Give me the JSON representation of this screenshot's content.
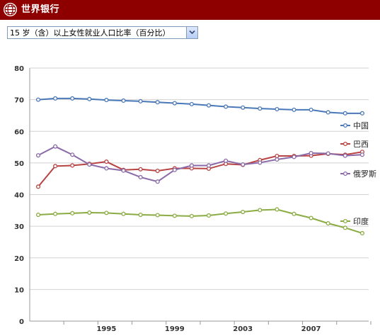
{
  "header": {
    "brand": "世界银行",
    "color": "#8e0000",
    "logo_icon": "globe-icon"
  },
  "selector": {
    "value": "15 岁（含）以上女性就业人口比率（百分比）",
    "button_icon": "chevron-down-icon"
  },
  "chart_data": {
    "type": "line",
    "title": "",
    "xlabel": "",
    "ylabel": "",
    "ylim": [
      0,
      80
    ],
    "yticks": [
      0,
      10,
      20,
      30,
      40,
      50,
      60,
      70,
      80
    ],
    "xticks": [
      1995,
      1999,
      2003,
      2007
    ],
    "x": [
      1991,
      1992,
      1993,
      1994,
      1995,
      1996,
      1997,
      1998,
      1999,
      2000,
      2001,
      2002,
      2003,
      2004,
      2005,
      2006,
      2007,
      2008,
      2009,
      2010
    ],
    "grid": "horizontal",
    "legend_position": "right",
    "series": [
      {
        "name": "中国",
        "color": "#4a78b8",
        "values": [
          70.0,
          70.4,
          70.4,
          70.2,
          69.9,
          69.7,
          69.5,
          69.2,
          68.9,
          68.6,
          68.2,
          67.8,
          67.5,
          67.2,
          67.0,
          66.8,
          66.8,
          66.0,
          65.7,
          65.7
        ]
      },
      {
        "name": "巴西",
        "color": "#b84444",
        "values": [
          42.5,
          49.0,
          49.2,
          49.7,
          50.4,
          47.8,
          48.0,
          47.5,
          48.3,
          48.3,
          48.2,
          49.7,
          49.4,
          50.9,
          52.2,
          52.2,
          52.3,
          52.9,
          52.6,
          53.5
        ]
      },
      {
        "name": "俄罗斯",
        "color": "#8a6aa8",
        "values": [
          52.4,
          55.2,
          52.6,
          49.5,
          48.3,
          47.6,
          45.5,
          44.1,
          47.8,
          49.2,
          49.2,
          50.7,
          49.5,
          50.1,
          51.1,
          51.9,
          53.1,
          53.0,
          52.3,
          52.6
        ]
      },
      {
        "name": "印度",
        "color": "#8aac42",
        "values": [
          33.6,
          33.9,
          34.1,
          34.3,
          34.2,
          33.9,
          33.6,
          33.5,
          33.3,
          33.2,
          33.4,
          34.0,
          34.5,
          35.1,
          35.3,
          33.9,
          32.6,
          30.9,
          29.5,
          27.8
        ]
      }
    ]
  }
}
